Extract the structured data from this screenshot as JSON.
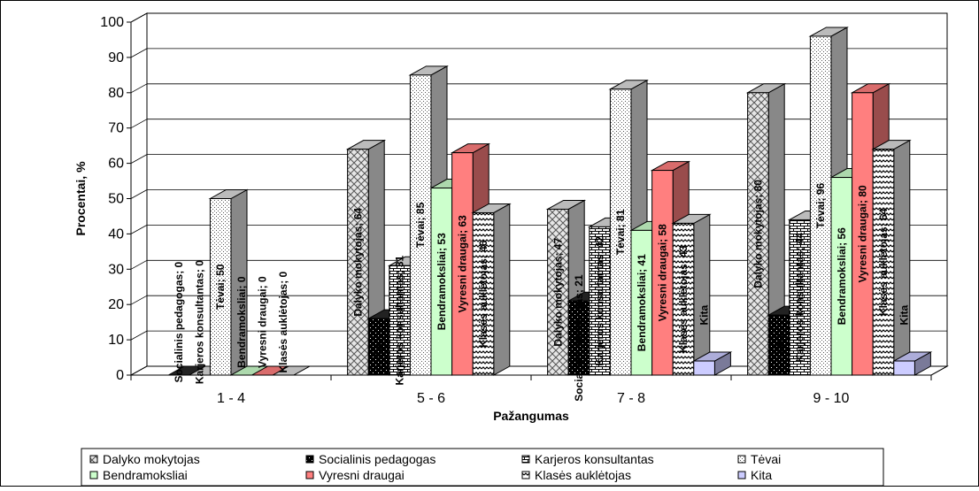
{
  "chart_data": {
    "type": "bar",
    "xlabel": "Pažangumas",
    "ylabel": "Procentai, %",
    "ylim": [
      0,
      100
    ],
    "yticks": [
      "0",
      "10",
      "20",
      "30",
      "40",
      "50",
      "60",
      "70",
      "80",
      "90",
      "100"
    ],
    "categories": [
      "1 - 4",
      "5 - 6",
      "7 - 8",
      "9 - 10"
    ],
    "legend_position": "bottom",
    "grid": true,
    "series": [
      {
        "name": "Dalyko mokytojas",
        "color": "#d9d9d9",
        "pattern": "crosshatch",
        "values": [
          null,
          64,
          47,
          80
        ],
        "labels": [
          "",
          "Dalyko mokytojas; 64",
          "Dalyko mokytojas; 47",
          "Dalyko mokytojas; 80"
        ]
      },
      {
        "name": "Socialinis pedagogas",
        "color": "#000000",
        "pattern": "dots-on-black",
        "values": [
          0,
          16,
          21,
          17
        ],
        "labels": [
          "Socialinis pedagogas; 0",
          "Soci",
          "Socialinis pedagogas; 21",
          "Soci"
        ]
      },
      {
        "name": "Karjeros konsultantas",
        "color": "#ffffff",
        "pattern": "bricks",
        "values": [
          0,
          31,
          42,
          44
        ],
        "labels": [
          "Karjeros konsultantas; 0",
          "Karjeros konsultantas; 31",
          "Karjeros konsultantas; 42",
          "Karjeros konsultantas; 44"
        ]
      },
      {
        "name": "Tėvai",
        "color": "#ffffff",
        "pattern": "dots",
        "values": [
          50,
          85,
          81,
          96
        ],
        "labels": [
          "Tėvai; 50",
          "Tėvai; 85",
          "Tėvai; 81",
          "Tėvai; 96"
        ]
      },
      {
        "name": "Bendramoksliai",
        "color": "#ccffcc",
        "pattern": "solid",
        "values": [
          0,
          53,
          41,
          56
        ],
        "labels": [
          "Bendramoksliai; 0",
          "Bendramoksliai; 53",
          "Bendramoksliai; 41",
          "Bendramoksliai; 56"
        ]
      },
      {
        "name": "Vyresni draugai",
        "color": "#ff7f7f",
        "pattern": "solid",
        "values": [
          0,
          63,
          58,
          80
        ],
        "labels": [
          "Vyresni draugai; 0",
          "Vyresni draugai; 63",
          "Vyresni draugai; 58",
          "Vyresni draugai; 80"
        ]
      },
      {
        "name": "Klasės auklėtojas",
        "color": "#ffffff",
        "pattern": "zigzag",
        "values": [
          0,
          46,
          43,
          64
        ],
        "labels": [
          "Klasės auklėtojas; 0",
          "Klasės auklėtojas; 46",
          "Klasės auklėtojas; 43",
          "Klasės auklėtojas; 64"
        ]
      },
      {
        "name": "Kita",
        "color": "#ccccff",
        "pattern": "solid",
        "values": [
          null,
          null,
          4,
          4
        ],
        "labels": [
          "",
          "",
          "Kita",
          "Kita"
        ]
      }
    ]
  }
}
